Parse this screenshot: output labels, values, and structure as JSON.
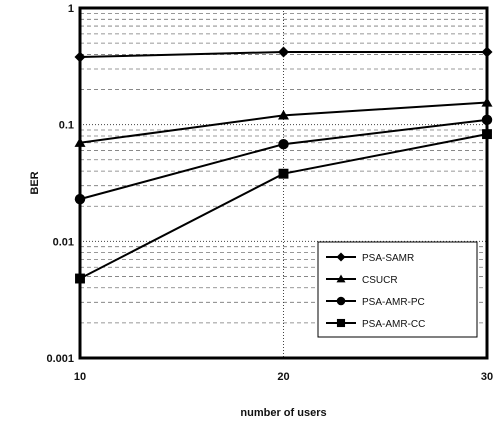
{
  "chart_data": {
    "type": "line",
    "title": "",
    "xlabel": "number of users",
    "ylabel": "BER",
    "x": [
      10,
      20,
      30
    ],
    "xticks": [
      "10",
      "20",
      "30"
    ],
    "xlim": [
      10,
      30
    ],
    "yscale": "log",
    "ylim": [
      0.001,
      1
    ],
    "yticks": [
      "0.001",
      "0.01",
      "0.1",
      "1"
    ],
    "grid": true,
    "legend_position": "bottom-right",
    "series": [
      {
        "name": "PSA-SAMR",
        "marker": "diamond",
        "values": [
          0.38,
          0.42,
          0.42
        ]
      },
      {
        "name": "CSUCR",
        "marker": "triangle",
        "values": [
          0.07,
          0.12,
          0.155
        ]
      },
      {
        "name": "PSA-AMR-PC",
        "marker": "circle",
        "values": [
          0.023,
          0.068,
          0.11
        ]
      },
      {
        "name": "PSA-AMR-CC",
        "marker": "square",
        "values": [
          0.0048,
          0.038,
          0.083
        ]
      }
    ]
  }
}
